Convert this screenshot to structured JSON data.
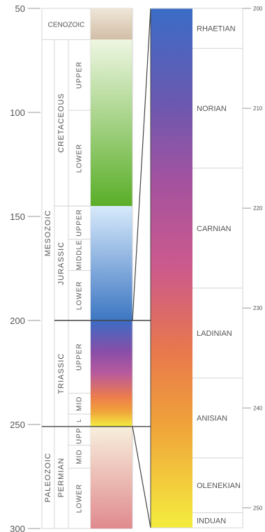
{
  "left_scale": {
    "min": 50,
    "max": 300,
    "ticks": [
      "50",
      "100",
      "150",
      "200",
      "250",
      "300"
    ]
  },
  "right_scale": {
    "min": 200,
    "max": 252,
    "ticks": [
      "200",
      "210",
      "220",
      "230",
      "240",
      "250"
    ]
  },
  "eras": [
    {
      "label": "CENOZOIC",
      "start": 50,
      "end": 65
    },
    {
      "label": "MESOZOIC",
      "start": 65,
      "end": 251
    },
    {
      "label": "PALEOZOIC",
      "start": 251,
      "end": 300
    }
  ],
  "periods": [
    {
      "label": "CRETACEOUS",
      "start": 65,
      "end": 145
    },
    {
      "label": "JURASSIC",
      "start": 145,
      "end": 200
    },
    {
      "label": "TRIASSIC",
      "start": 200,
      "end": 251
    },
    {
      "label": "PERMIAN",
      "start": 251,
      "end": 300
    }
  ],
  "epochs": [
    {
      "label": "UPPER",
      "start": 65,
      "end": 99
    },
    {
      "label": "LOWER",
      "start": 99,
      "end": 145
    },
    {
      "label": "UPPER",
      "start": 145,
      "end": 161
    },
    {
      "label": "MIDDLE",
      "start": 161,
      "end": 176
    },
    {
      "label": "LOWER",
      "start": 176,
      "end": 200
    },
    {
      "label": "UPPER",
      "start": 200,
      "end": 235
    },
    {
      "label": "MID",
      "start": 235,
      "end": 245
    },
    {
      "label": "L",
      "start": 245,
      "end": 251
    },
    {
      "label": "UPP",
      "start": 251,
      "end": 260
    },
    {
      "label": "MID",
      "start": 260,
      "end": 271
    },
    {
      "label": "LOWER",
      "start": 271,
      "end": 300
    }
  ],
  "stages": [
    {
      "label": "RHAETIAN",
      "start": 200,
      "end": 204
    },
    {
      "label": "NORIAN",
      "start": 204,
      "end": 216
    },
    {
      "label": "CARNIAN",
      "start": 216,
      "end": 228
    },
    {
      "label": "LADINIAN",
      "start": 228,
      "end": 237
    },
    {
      "label": "ANISIAN",
      "start": 237,
      "end": 245
    },
    {
      "label": "OLENEKIAN",
      "start": 245,
      "end": 250.5
    },
    {
      "label": "INDUAN",
      "start": 250.5,
      "end": 252
    }
  ],
  "colors": {
    "cenozoic": "#e3d3c0",
    "cretaceous_top": "#eaf4dc",
    "cretaceous_bottom": "#5aae28",
    "jurassic_top": "#d2e6fa",
    "jurassic_bottom": "#3c76c2",
    "triassic_stops": [
      "#3c6cc4",
      "#8a4ea8",
      "#b456a2",
      "#e0745c",
      "#f09a3c",
      "#f4ee40"
    ],
    "permian_top": "#f5ecd8",
    "permian_bottom": "#e29090",
    "grid": "#d4d4d4",
    "line": "#444444"
  }
}
